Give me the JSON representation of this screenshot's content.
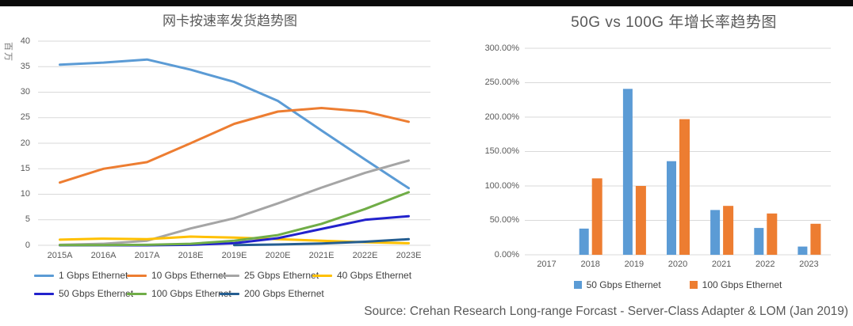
{
  "window": {
    "top_bar_color": "#0a0a0a",
    "background_color": "#ffffff",
    "gridline_color": "#d9d9d9"
  },
  "source_note": "Source: Crehan Research Long-range Forcast - Server-Class Adapter & LOM (Jan 2019)",
  "chart_data": [
    {
      "type": "line",
      "title": "网卡按速率发货趋势图",
      "ylabel": "百万",
      "xlabel": "",
      "categories": [
        "2015A",
        "2016A",
        "2017A",
        "2018E",
        "2019E",
        "2020E",
        "2021E",
        "2022E",
        "2023E"
      ],
      "ylim": [
        0,
        40
      ],
      "ytick_step": 5,
      "ytick_labels": [
        "0",
        "5",
        "10",
        "15",
        "20",
        "25",
        "30",
        "35",
        "40"
      ],
      "grid": true,
      "legend_position": "bottom",
      "series": [
        {
          "name": "1 Gbps Ethernet",
          "color": "#5B9BD5",
          "values": [
            35.4,
            35.8,
            36.4,
            34.4,
            32.0,
            28.3,
            22.5,
            16.8,
            11.2
          ]
        },
        {
          "name": "10 Gbps Ethernet",
          "color": "#ED7D31",
          "values": [
            12.3,
            15.0,
            16.3,
            20.0,
            23.8,
            26.2,
            26.9,
            26.2,
            24.2
          ]
        },
        {
          "name": "25 Gbps Ethernet",
          "color": "#A5A5A5",
          "values": [
            0.1,
            0.3,
            0.9,
            3.3,
            5.3,
            8.2,
            11.3,
            14.2,
            16.6
          ]
        },
        {
          "name": "40 Gbps Ethernet",
          "color": "#FFC000",
          "values": [
            1.1,
            1.3,
            1.2,
            1.7,
            1.5,
            1.2,
            0.9,
            0.6,
            0.4
          ]
        },
        {
          "name": "50 Gbps Ethernet",
          "color": "#2222CC",
          "values": [
            0,
            0,
            0,
            0.1,
            0.4,
            1.4,
            3.2,
            5.0,
            5.7
          ]
        },
        {
          "name": "100 Gbps Ethernet",
          "color": "#70AD47",
          "values": [
            0.05,
            0.05,
            0.1,
            0.3,
            0.9,
            2.0,
            4.2,
            7.1,
            10.4
          ]
        },
        {
          "name": "200 Gbps Ethernet",
          "color": "#255E91",
          "values": [
            null,
            null,
            null,
            null,
            0.05,
            0.15,
            0.35,
            0.7,
            1.2
          ]
        }
      ]
    },
    {
      "type": "bar",
      "title": "50G vs 100G 年增长率趋势图",
      "xlabel": "",
      "ylabel": "",
      "categories": [
        "2017",
        "2018",
        "2019",
        "2020",
        "2021",
        "2022",
        "2023"
      ],
      "ylim": [
        0,
        300
      ],
      "ytick_step": 50,
      "ytick_unit": "%",
      "ytick_labels": [
        "0.00%",
        "50.00%",
        "100.00%",
        "150.00%",
        "200.00%",
        "250.00%",
        "300.00%"
      ],
      "grid": true,
      "legend_position": "bottom",
      "series": [
        {
          "name": "50 Gbps Ethernet",
          "color": "#5B9BD5",
          "values": [
            0,
            38,
            241,
            136,
            65,
            39,
            12
          ]
        },
        {
          "name": "100 Gbps Ethernet",
          "color": "#ED7D31",
          "values": [
            0,
            111,
            100,
            197,
            71,
            60,
            45
          ]
        }
      ]
    }
  ]
}
